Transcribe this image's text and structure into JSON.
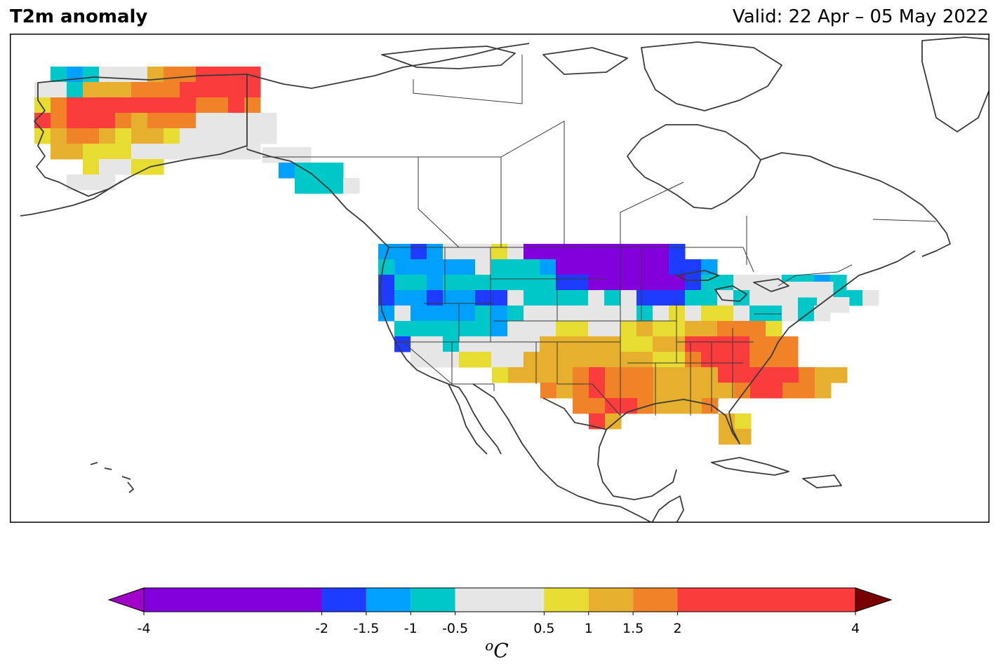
{
  "title": "T2m anomaly",
  "valid": "Valid: 22 Apr – 05 May 2022",
  "colorbar": {
    "unit_sup": "o",
    "unit": "C",
    "bounds": [
      -4,
      -2,
      -1.5,
      -1,
      -0.5,
      0.5,
      1,
      1.5,
      2,
      4
    ],
    "tick_labels": [
      "-4",
      "-2",
      "-1.5",
      "-1",
      "-0.5",
      "0.5",
      "1",
      "1.5",
      "2",
      "4"
    ],
    "colors": [
      "#8200dc",
      "#1e3cff",
      "#00a0ff",
      "#00c8c8",
      "#e6e6e6",
      "#e6dc32",
      "#e6af2d",
      "#f08228",
      "#fa3c3c"
    ],
    "under_color": "#a000c8",
    "over_color": "#780000"
  }
}
